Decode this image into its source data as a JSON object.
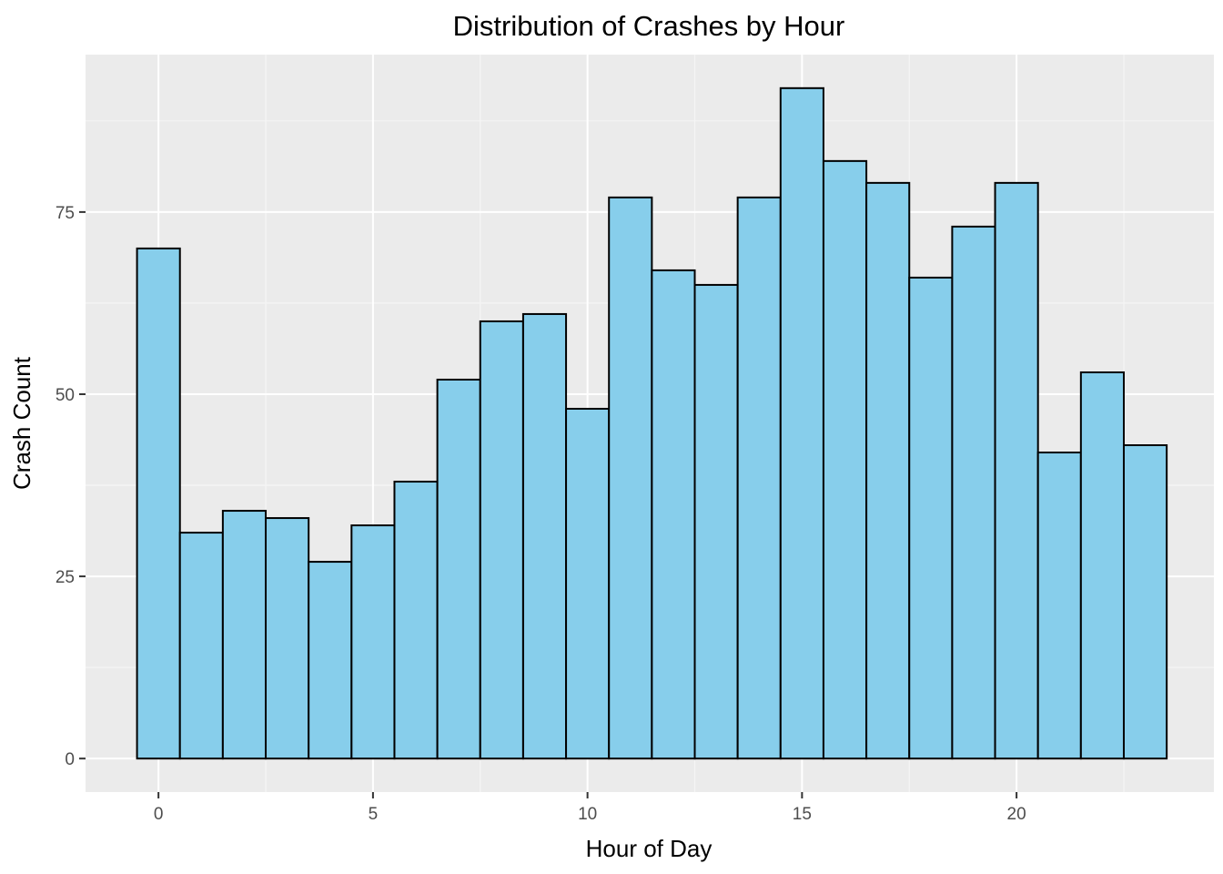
{
  "chart_data": {
    "type": "bar",
    "title": "Distribution of Crashes by Hour",
    "xlabel": "Hour of Day",
    "ylabel": "Crash Count",
    "x": [
      0,
      1,
      2,
      3,
      4,
      5,
      6,
      7,
      8,
      9,
      10,
      11,
      12,
      13,
      14,
      15,
      16,
      17,
      18,
      19,
      20,
      21,
      22,
      23
    ],
    "values": [
      70,
      31,
      34,
      33,
      27,
      32,
      38,
      52,
      60,
      61,
      48,
      77,
      67,
      65,
      77,
      92,
      82,
      79,
      66,
      73,
      79,
      42,
      53,
      43
    ],
    "xlim": [
      -1.7,
      24.6
    ],
    "ylim": [
      -4.6,
      96.6
    ],
    "x_ticks": [
      0,
      5,
      10,
      15,
      20
    ],
    "y_ticks": [
      0,
      25,
      50,
      75
    ],
    "grid": true,
    "colors": {
      "bar_fill": "#87ceeb",
      "bar_stroke": "#000000",
      "panel_background": "#ebebeb",
      "grid_major": "#ffffff",
      "grid_minor": "#f5f5f5"
    }
  }
}
